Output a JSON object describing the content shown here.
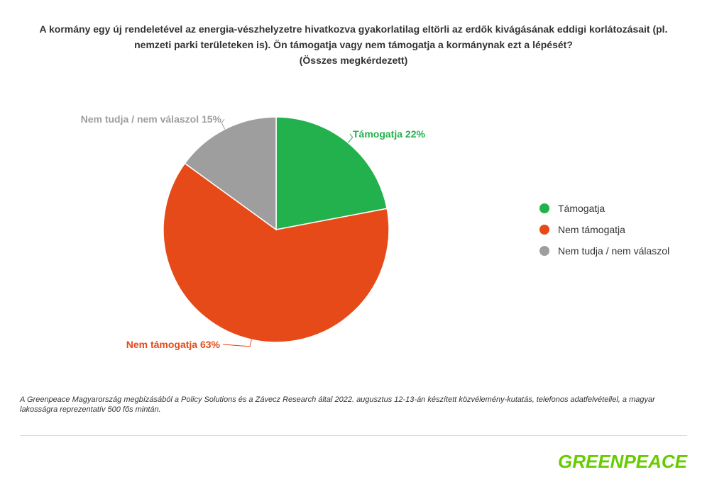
{
  "chart_data": {
    "type": "pie",
    "title_lines": [
      "A kormány egy új rendeletével az energia-vészhelyzetre hivatkozva gyakorlatilag eltörli az erdők kivágásának eddigi korlátozásait (pl.",
      "nemzeti parki területeken is). Ön támogatja vagy nem támogatja a kormánynak ezt a lépését?",
      "(Összes megkérdezett)"
    ],
    "slices": [
      {
        "name": "Támogatja",
        "value": 22,
        "label": "Támogatja 22%",
        "color": "#22b14c"
      },
      {
        "name": "Nem támogatja",
        "value": 63,
        "label": "Nem támogatja 63%",
        "color": "#e64a19"
      },
      {
        "name": "Nem tudja / nem válaszol",
        "value": 15,
        "label": "Nem tudja / nem válaszol 15%",
        "color": "#9e9e9e"
      }
    ],
    "legend_position": "right"
  },
  "footnote": "A Greenpeace Magyarország megbízásából a Policy Solutions és a Závecz Research által 2022. augusztus 12-13-án készített közvélemény-kutatás, telefonos adatfelvétellel, a magyar lakosságra reprezentatív 500 fős mintán.",
  "logo": "GREENPEACE"
}
